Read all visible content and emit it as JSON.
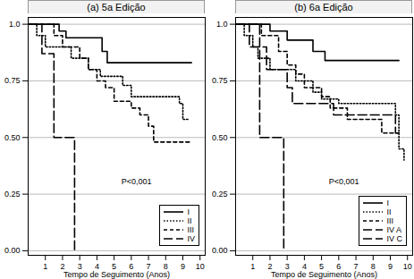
{
  "chart_data": [
    {
      "type": "line",
      "title": "(a) 5a Edição",
      "x_label": "Tempo de Seguimento (Anos)",
      "xlim": [
        0,
        10.3
      ],
      "xticks": [
        1,
        2,
        3,
        4,
        5,
        6,
        7,
        8,
        9,
        10
      ],
      "ylim": [
        -0.02,
        1.03
      ],
      "yticks": [
        {
          "value": 0,
          "label": "0.00"
        },
        {
          "value": 0.25,
          "label": "0.25"
        },
        {
          "value": 0.5,
          "label": "0.50"
        },
        {
          "value": 0.75,
          "label": "0.75"
        },
        {
          "value": 1,
          "label": "1.0"
        }
      ],
      "grid": true,
      "legend": "bottom-right",
      "annotations": [
        "P<0,001"
      ],
      "series": [
        {
          "name": "I",
          "color": "#000000",
          "line_style": "solid",
          "x": [
            0,
            1.8,
            2.2,
            4.3,
            4.6,
            9.5
          ],
          "values": [
            1.0,
            0.97,
            0.94,
            0.88,
            0.83,
            0.83
          ]
        },
        {
          "name": "II",
          "color": "#000000",
          "line_style": "dotted",
          "x": [
            0,
            0.5,
            1.0,
            2.5,
            3.5,
            4.2,
            5.5,
            6.0,
            8.8,
            9.0,
            9.3
          ],
          "values": [
            1.0,
            0.95,
            0.9,
            0.85,
            0.8,
            0.77,
            0.73,
            0.68,
            0.65,
            0.58,
            0.58
          ]
        },
        {
          "name": "III",
          "color": "#000000",
          "line_style": "dashed",
          "x": [
            0,
            1.5,
            2.0,
            3.0,
            3.5,
            4.0,
            4.5,
            5.0,
            6.0,
            6.5,
            7.0,
            7.3,
            9.5
          ],
          "values": [
            1.0,
            0.95,
            0.9,
            0.85,
            0.8,
            0.75,
            0.72,
            0.66,
            0.63,
            0.6,
            0.55,
            0.48,
            0.48
          ]
        },
        {
          "name": "IV",
          "color": "#000000",
          "line_style": "longdash",
          "x": [
            0,
            0.8,
            1.5,
            2.7
          ],
          "values": [
            1.0,
            0.87,
            0.5,
            0.0
          ]
        }
      ]
    },
    {
      "type": "line",
      "title": "(b) 6a Edição",
      "x_label": "Tempo de Seguimento (Anos)",
      "xlim": [
        0,
        10.3
      ],
      "xticks": [
        1,
        2,
        3,
        4,
        5,
        6,
        7,
        8,
        9,
        10
      ],
      "ylim": [
        -0.02,
        1.03
      ],
      "yticks": [
        {
          "value": 0,
          "label": "0.00"
        },
        {
          "value": 0.25,
          "label": "0.25"
        },
        {
          "value": 0.5,
          "label": "0.50"
        },
        {
          "value": 0.75,
          "label": "0.75"
        },
        {
          "value": 1,
          "label": "1.0"
        }
      ],
      "grid": true,
      "legend": "bottom-right",
      "annotations": [
        "P<0,001"
      ],
      "series": [
        {
          "name": "I",
          "color": "#000000",
          "line_style": "solid",
          "x": [
            0,
            2.0,
            3.0,
            4.5,
            5.2,
            9.5
          ],
          "values": [
            1.0,
            0.97,
            0.93,
            0.88,
            0.84,
            0.84
          ]
        },
        {
          "name": "II",
          "color": "#000000",
          "line_style": "dotted",
          "x": [
            0,
            0.5,
            1.0,
            1.3,
            2.0,
            3.5,
            4.5,
            5.0,
            6.0,
            9.3,
            9.5,
            9.8
          ],
          "values": [
            1.0,
            0.95,
            0.9,
            0.85,
            0.8,
            0.75,
            0.7,
            0.67,
            0.65,
            0.6,
            0.45,
            0.4
          ]
        },
        {
          "name": "III",
          "color": "#000000",
          "line_style": "dashed",
          "x": [
            0,
            1.5,
            2.5,
            3.0,
            3.5,
            4.0,
            5.0,
            5.5,
            6.5,
            8.5,
            9.5
          ],
          "values": [
            1.0,
            0.95,
            0.88,
            0.82,
            0.78,
            0.72,
            0.68,
            0.63,
            0.58,
            0.52,
            0.52
          ]
        },
        {
          "name": "IV A",
          "color": "#000000",
          "line_style": "longdash",
          "x": [
            0,
            0.8,
            1.8,
            3.0,
            3.3,
            5.7,
            9.3,
            9.5
          ],
          "values": [
            1.0,
            0.9,
            0.8,
            0.72,
            0.65,
            0.6,
            0.52,
            0.52
          ]
        },
        {
          "name": "IV C",
          "color": "#000000",
          "line_style": "longdash",
          "x": [
            0,
            1.4,
            2.8
          ],
          "values": [
            1.0,
            0.5,
            0.0
          ]
        }
      ]
    }
  ]
}
